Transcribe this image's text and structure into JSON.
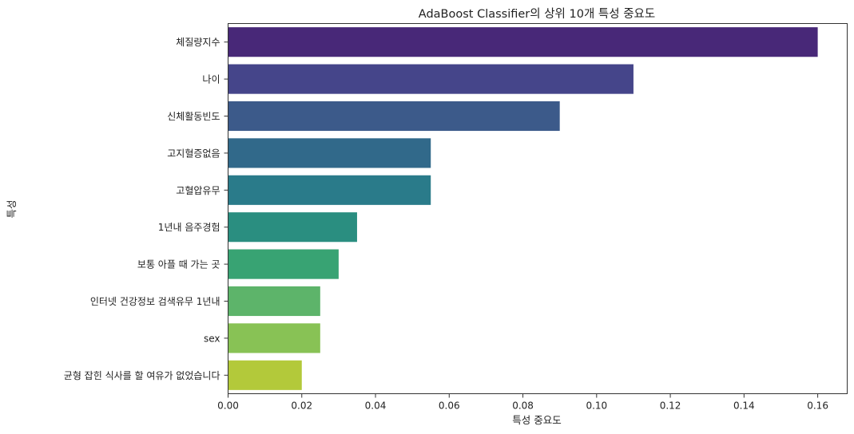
{
  "chart_data": {
    "type": "bar",
    "orientation": "horizontal",
    "title": "AdaBoost Classifier의 상위 10개 특성 중요도",
    "xlabel": "특성 중요도",
    "ylabel": "특성",
    "categories": [
      "체질량지수",
      "나이",
      "신체활동빈도",
      "고지혈증없음",
      "고혈압유무",
      "1년내 음주경험",
      "보통 아플 때 가는 곳",
      "인터넷 건강정보 검색유무 1년내",
      "sex",
      "균형 잡힌 식사를 할 여유가 없었습니다"
    ],
    "values": [
      0.16,
      0.11,
      0.09,
      0.055,
      0.055,
      0.035,
      0.03,
      0.025,
      0.025,
      0.02
    ],
    "colors": [
      "#482475",
      "#414487",
      "#355f8d",
      "#2a788e",
      "#21918c",
      "#22a884",
      "#44bf70",
      "#7ad151",
      "#bddf26",
      "#fde725"
    ],
    "bar_colors": [
      "#482878",
      "#45458a",
      "#3c5a8a",
      "#31698a",
      "#2a7b8a",
      "#2a8e80",
      "#38a373",
      "#5db46a",
      "#88c255",
      "#b3c93a"
    ],
    "xlim": [
      0,
      0.168
    ],
    "xticks": [
      "0.00",
      "0.02",
      "0.04",
      "0.06",
      "0.08",
      "0.10",
      "0.12",
      "0.14",
      "0.16"
    ],
    "grid": false,
    "legend": "none"
  }
}
